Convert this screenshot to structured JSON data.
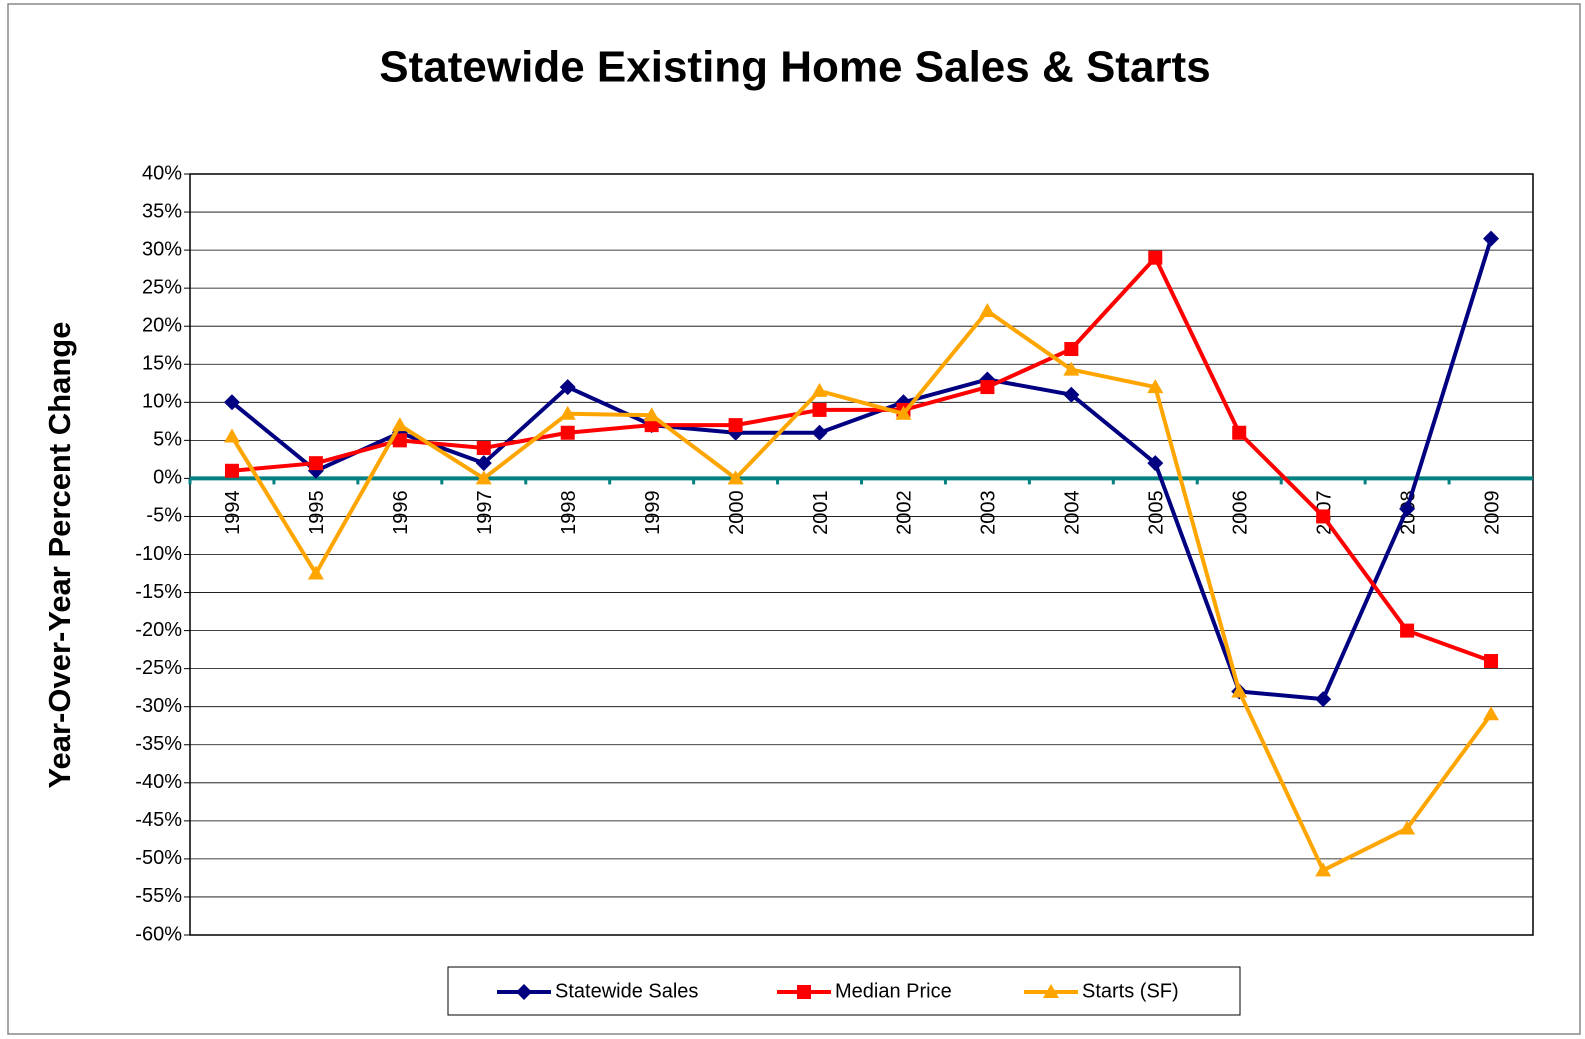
{
  "chart_data": {
    "type": "line",
    "title": "Statewide Existing Home Sales & Starts",
    "y_label": "Year-Over-Year Percent Change",
    "categories": [
      "1994",
      "1995",
      "1996",
      "1997",
      "1998",
      "1999",
      "2000",
      "2001",
      "2002",
      "2003",
      "2004",
      "2005",
      "2006",
      "2007",
      "2008",
      "2009"
    ],
    "series": [
      {
        "name": "Statewide Sales",
        "color": "#000080",
        "marker": "diamond",
        "values": [
          10,
          1,
          6,
          2,
          12,
          7,
          6,
          6,
          10,
          13,
          11,
          2,
          -28,
          -29,
          -4,
          31.5
        ]
      },
      {
        "name": "Median Price",
        "color": "#ff0000",
        "marker": "square",
        "values": [
          1,
          2,
          5,
          4,
          6,
          7,
          7,
          9,
          9,
          12,
          17,
          29,
          6,
          -5,
          -20,
          -24
        ]
      },
      {
        "name": "Starts (SF)",
        "color": "#ffa500",
        "marker": "triangle",
        "values": [
          5.5,
          -12.5,
          7,
          0,
          8.5,
          8.3,
          0,
          11.5,
          8.5,
          22,
          14.3,
          12,
          -28,
          -51.5,
          -46,
          -31
        ]
      }
    ],
    "ylim": [
      -60,
      40
    ],
    "yticks": [
      {
        "value": -60,
        "label": "-60%"
      },
      {
        "value": -55,
        "label": "-55%"
      },
      {
        "value": -50,
        "label": "-50%"
      },
      {
        "value": -45,
        "label": "-45%"
      },
      {
        "value": -40,
        "label": "-40%"
      },
      {
        "value": -35,
        "label": "-35%"
      },
      {
        "value": -30,
        "label": "-30%"
      },
      {
        "value": -25,
        "label": "-25%"
      },
      {
        "value": -20,
        "label": "-20%"
      },
      {
        "value": -15,
        "label": "-15%"
      },
      {
        "value": -10,
        "label": "-10%"
      },
      {
        "value": -5,
        "label": "-5%"
      },
      {
        "value": 0,
        "label": "0%"
      },
      {
        "value": 5,
        "label": "5%"
      },
      {
        "value": 10,
        "label": "10%"
      },
      {
        "value": 15,
        "label": "15%"
      },
      {
        "value": 20,
        "label": "20%"
      },
      {
        "value": 25,
        "label": "25%"
      },
      {
        "value": 30,
        "label": "30%"
      },
      {
        "value": 35,
        "label": "35%"
      },
      {
        "value": 40,
        "label": "40%"
      }
    ],
    "grid": true,
    "legend": "bottom"
  }
}
